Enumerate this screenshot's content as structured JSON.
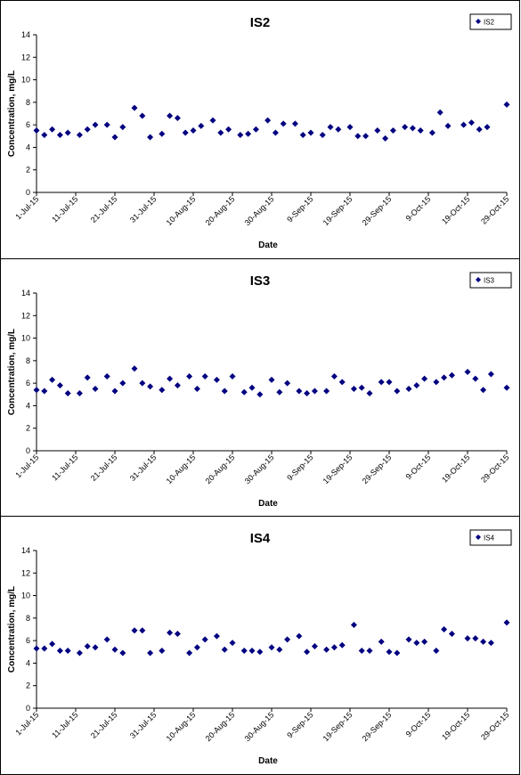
{
  "chart_data": [
    {
      "type": "scatter",
      "title": "IS2",
      "xlabel": "Date",
      "ylabel": "Concentration, mg/L",
      "ylim": [
        0,
        14
      ],
      "yticks": [
        0,
        2,
        4,
        6,
        8,
        10,
        12,
        14
      ],
      "xlim": [
        "2015-07-01",
        "2015-10-29"
      ],
      "xtick_labels": [
        "1-Jul-15",
        "11-Jul-15",
        "21-Jul-15",
        "31-Jul-15",
        "10-Aug-15",
        "20-Aug-15",
        "30-Aug-15",
        "9-Sep-15",
        "19-Sep-15",
        "29-Sep-15",
        "9-Oct-15",
        "19-Oct-15",
        "29-Oct-15"
      ],
      "grid": false,
      "legend_position": "top-right",
      "marker_color": "#000080",
      "series": [
        {
          "name": "IS2",
          "points": [
            [
              "2015-07-01",
              5.5
            ],
            [
              "2015-07-03",
              5.1
            ],
            [
              "2015-07-05",
              5.6
            ],
            [
              "2015-07-07",
              5.1
            ],
            [
              "2015-07-09",
              5.3
            ],
            [
              "2015-07-12",
              5.1
            ],
            [
              "2015-07-14",
              5.6
            ],
            [
              "2015-07-16",
              6.0
            ],
            [
              "2015-07-19",
              6.0
            ],
            [
              "2015-07-21",
              4.9
            ],
            [
              "2015-07-23",
              5.8
            ],
            [
              "2015-07-26",
              7.5
            ],
            [
              "2015-07-28",
              6.8
            ],
            [
              "2015-07-30",
              4.9
            ],
            [
              "2015-08-02",
              5.2
            ],
            [
              "2015-08-04",
              6.8
            ],
            [
              "2015-08-06",
              6.6
            ],
            [
              "2015-08-08",
              5.3
            ],
            [
              "2015-08-10",
              5.5
            ],
            [
              "2015-08-12",
              5.9
            ],
            [
              "2015-08-15",
              6.4
            ],
            [
              "2015-08-17",
              5.3
            ],
            [
              "2015-08-19",
              5.6
            ],
            [
              "2015-08-22",
              5.1
            ],
            [
              "2015-08-24",
              5.2
            ],
            [
              "2015-08-26",
              5.6
            ],
            [
              "2015-08-29",
              6.4
            ],
            [
              "2015-08-31",
              5.3
            ],
            [
              "2015-09-02",
              6.1
            ],
            [
              "2015-09-05",
              6.1
            ],
            [
              "2015-09-07",
              5.1
            ],
            [
              "2015-09-09",
              5.3
            ],
            [
              "2015-09-12",
              5.1
            ],
            [
              "2015-09-14",
              5.8
            ],
            [
              "2015-09-16",
              5.6
            ],
            [
              "2015-09-19",
              5.8
            ],
            [
              "2015-09-21",
              5.0
            ],
            [
              "2015-09-23",
              5.0
            ],
            [
              "2015-09-26",
              5.5
            ],
            [
              "2015-09-28",
              4.8
            ],
            [
              "2015-09-30",
              5.5
            ],
            [
              "2015-10-03",
              5.8
            ],
            [
              "2015-10-05",
              5.7
            ],
            [
              "2015-10-07",
              5.5
            ],
            [
              "2015-10-10",
              5.3
            ],
            [
              "2015-10-12",
              7.1
            ],
            [
              "2015-10-14",
              5.9
            ],
            [
              "2015-10-18",
              6.0
            ],
            [
              "2015-10-20",
              6.2
            ],
            [
              "2015-10-22",
              5.6
            ],
            [
              "2015-10-24",
              5.8
            ],
            [
              "2015-10-29",
              7.8
            ]
          ]
        }
      ]
    },
    {
      "type": "scatter",
      "title": "IS3",
      "xlabel": "Date",
      "ylabel": "Concentration, mg/L",
      "ylim": [
        0,
        14
      ],
      "yticks": [
        0,
        2,
        4,
        6,
        8,
        10,
        12,
        14
      ],
      "xlim": [
        "2015-07-01",
        "2015-10-29"
      ],
      "xtick_labels": [
        "1-Jul-15",
        "11-Jul-15",
        "21-Jul-15",
        "31-Jul-15",
        "10-Aug-15",
        "20-Aug-15",
        "30-Aug-15",
        "9-Sep-15",
        "19-Sep-15",
        "29-Sep-15",
        "9-Oct-15",
        "19-Oct-15",
        "29-Oct-15"
      ],
      "grid": false,
      "legend_position": "top-right",
      "marker_color": "#000080",
      "series": [
        {
          "name": "IS3",
          "points": [
            [
              "2015-07-01",
              5.4
            ],
            [
              "2015-07-03",
              5.3
            ],
            [
              "2015-07-05",
              6.3
            ],
            [
              "2015-07-07",
              5.8
            ],
            [
              "2015-07-09",
              5.1
            ],
            [
              "2015-07-12",
              5.1
            ],
            [
              "2015-07-14",
              6.5
            ],
            [
              "2015-07-16",
              5.5
            ],
            [
              "2015-07-19",
              6.6
            ],
            [
              "2015-07-21",
              5.3
            ],
            [
              "2015-07-23",
              6.0
            ],
            [
              "2015-07-26",
              7.3
            ],
            [
              "2015-07-28",
              6.0
            ],
            [
              "2015-07-30",
              5.7
            ],
            [
              "2015-08-02",
              5.4
            ],
            [
              "2015-08-04",
              6.4
            ],
            [
              "2015-08-06",
              5.8
            ],
            [
              "2015-08-09",
              6.6
            ],
            [
              "2015-08-11",
              5.5
            ],
            [
              "2015-08-13",
              6.6
            ],
            [
              "2015-08-16",
              6.3
            ],
            [
              "2015-08-18",
              5.3
            ],
            [
              "2015-08-20",
              6.6
            ],
            [
              "2015-08-23",
              5.2
            ],
            [
              "2015-08-25",
              5.6
            ],
            [
              "2015-08-27",
              5.0
            ],
            [
              "2015-08-30",
              6.3
            ],
            [
              "2015-09-01",
              5.2
            ],
            [
              "2015-09-03",
              6.0
            ],
            [
              "2015-09-06",
              5.3
            ],
            [
              "2015-09-08",
              5.1
            ],
            [
              "2015-09-10",
              5.3
            ],
            [
              "2015-09-13",
              5.3
            ],
            [
              "2015-09-15",
              6.6
            ],
            [
              "2015-09-17",
              6.1
            ],
            [
              "2015-09-20",
              5.5
            ],
            [
              "2015-09-22",
              5.6
            ],
            [
              "2015-09-24",
              5.1
            ],
            [
              "2015-09-27",
              6.1
            ],
            [
              "2015-09-29",
              6.1
            ],
            [
              "2015-10-01",
              5.3
            ],
            [
              "2015-10-04",
              5.5
            ],
            [
              "2015-10-06",
              5.8
            ],
            [
              "2015-10-08",
              6.4
            ],
            [
              "2015-10-11",
              6.1
            ],
            [
              "2015-10-13",
              6.5
            ],
            [
              "2015-10-15",
              6.7
            ],
            [
              "2015-10-19",
              7.0
            ],
            [
              "2015-10-21",
              6.4
            ],
            [
              "2015-10-23",
              5.4
            ],
            [
              "2015-10-25",
              6.8
            ],
            [
              "2015-10-29",
              5.6
            ]
          ]
        }
      ]
    },
    {
      "type": "scatter",
      "title": "IS4",
      "xlabel": "Date",
      "ylabel": "Concentration, mg/L",
      "ylim": [
        0,
        14
      ],
      "yticks": [
        0,
        2,
        4,
        6,
        8,
        10,
        12,
        14
      ],
      "xlim": [
        "2015-07-01",
        "2015-10-29"
      ],
      "xtick_labels": [
        "1-Jul-15",
        "11-Jul-15",
        "21-Jul-15",
        "31-Jul-15",
        "10-Aug-15",
        "20-Aug-15",
        "30-Aug-15",
        "9-Sep-15",
        "19-Sep-15",
        "29-Sep-15",
        "9-Oct-15",
        "19-Oct-15",
        "29-Oct-15"
      ],
      "grid": false,
      "legend_position": "top-right",
      "marker_color": "#000080",
      "series": [
        {
          "name": "IS4",
          "points": [
            [
              "2015-07-01",
              5.3
            ],
            [
              "2015-07-03",
              5.3
            ],
            [
              "2015-07-05",
              5.7
            ],
            [
              "2015-07-07",
              5.1
            ],
            [
              "2015-07-09",
              5.1
            ],
            [
              "2015-07-12",
              4.9
            ],
            [
              "2015-07-14",
              5.5
            ],
            [
              "2015-07-16",
              5.4
            ],
            [
              "2015-07-19",
              6.1
            ],
            [
              "2015-07-21",
              5.2
            ],
            [
              "2015-07-23",
              4.9
            ],
            [
              "2015-07-26",
              6.9
            ],
            [
              "2015-07-28",
              6.9
            ],
            [
              "2015-07-30",
              4.9
            ],
            [
              "2015-08-02",
              5.1
            ],
            [
              "2015-08-04",
              6.7
            ],
            [
              "2015-08-06",
              6.6
            ],
            [
              "2015-08-09",
              4.9
            ],
            [
              "2015-08-11",
              5.4
            ],
            [
              "2015-08-13",
              6.1
            ],
            [
              "2015-08-16",
              6.4
            ],
            [
              "2015-08-18",
              5.2
            ],
            [
              "2015-08-20",
              5.8
            ],
            [
              "2015-08-23",
              5.1
            ],
            [
              "2015-08-25",
              5.1
            ],
            [
              "2015-08-27",
              5.0
            ],
            [
              "2015-08-30",
              5.4
            ],
            [
              "2015-09-01",
              5.2
            ],
            [
              "2015-09-03",
              6.1
            ],
            [
              "2015-09-06",
              6.4
            ],
            [
              "2015-09-08",
              5.0
            ],
            [
              "2015-09-10",
              5.5
            ],
            [
              "2015-09-13",
              5.2
            ],
            [
              "2015-09-15",
              5.4
            ],
            [
              "2015-09-17",
              5.6
            ],
            [
              "2015-09-20",
              7.4
            ],
            [
              "2015-09-22",
              5.1
            ],
            [
              "2015-09-24",
              5.1
            ],
            [
              "2015-09-27",
              5.9
            ],
            [
              "2015-09-29",
              5.0
            ],
            [
              "2015-10-01",
              4.9
            ],
            [
              "2015-10-04",
              6.1
            ],
            [
              "2015-10-06",
              5.8
            ],
            [
              "2015-10-08",
              5.9
            ],
            [
              "2015-10-11",
              5.1
            ],
            [
              "2015-10-13",
              7.0
            ],
            [
              "2015-10-15",
              6.6
            ],
            [
              "2015-10-19",
              6.2
            ],
            [
              "2015-10-21",
              6.2
            ],
            [
              "2015-10-23",
              5.9
            ],
            [
              "2015-10-25",
              5.8
            ],
            [
              "2015-10-29",
              7.6
            ]
          ]
        }
      ]
    }
  ]
}
